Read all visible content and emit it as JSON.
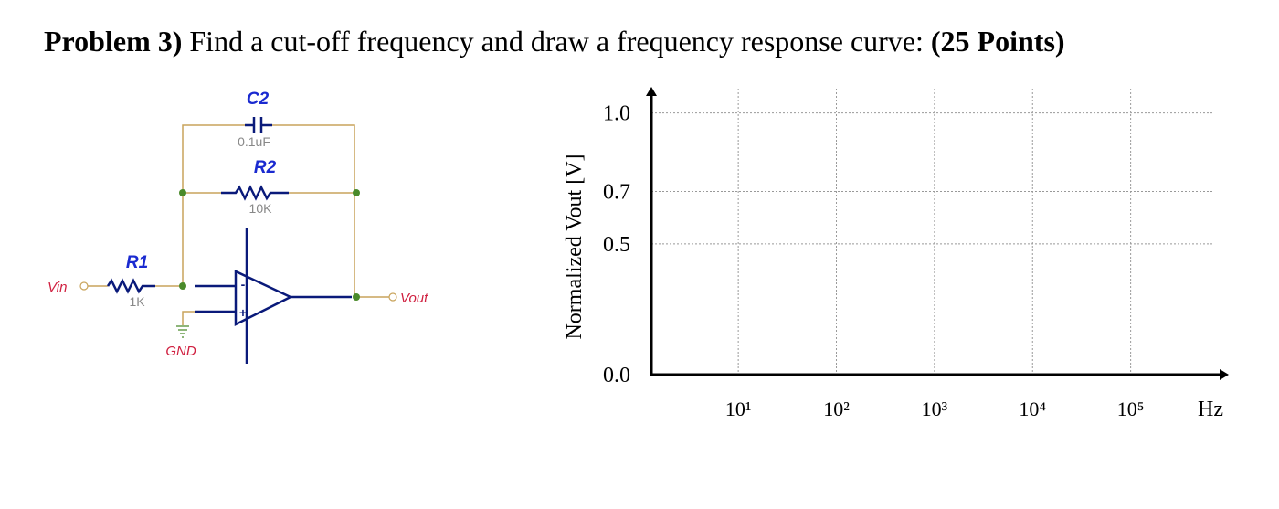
{
  "problem": {
    "number": "Problem 3)",
    "text": " Find a cut-off frequency and draw a frequency response curve: ",
    "points": "(25 Points)"
  },
  "circuit": {
    "c2": {
      "name": "C2",
      "value": "0.1uF"
    },
    "r2": {
      "name": "R2",
      "value": "10K"
    },
    "r1": {
      "name": "R1",
      "value": "1K"
    },
    "vin": "Vin",
    "vout": "Vout",
    "gnd": "GND",
    "minus": "-",
    "plus": "+"
  },
  "chart_data": {
    "type": "line",
    "ylabel": "Normalized Vout [V]",
    "xlabel": "Hz",
    "xscale": "log",
    "grid": true,
    "xlim": [
      1.3,
      1000000
    ],
    "ylim": [
      0,
      1.1
    ],
    "xticks": [
      {
        "value": 10,
        "label": "10¹"
      },
      {
        "value": 100,
        "label": "10²"
      },
      {
        "value": 1000,
        "label": "10³"
      },
      {
        "value": 10000,
        "label": "10⁴"
      },
      {
        "value": 100000,
        "label": "10⁵"
      }
    ],
    "yticks": [
      {
        "value": 0,
        "label": "0.0"
      },
      0.5,
      0.7,
      {
        "value": 1,
        "label": "1.0"
      }
    ]
  }
}
